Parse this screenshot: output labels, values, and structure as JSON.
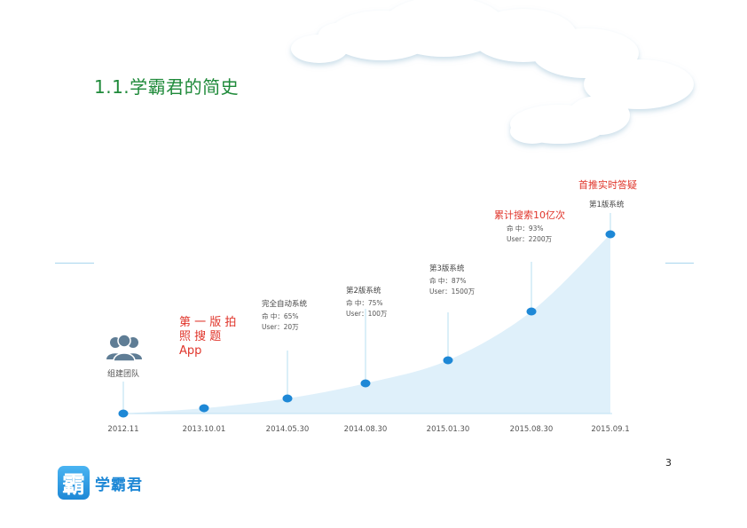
{
  "title": "1.1.学霸君的简史",
  "page_number": "3",
  "logo": {
    "icon_char": "霸",
    "text": "学霸君"
  },
  "colors": {
    "title": "#1f8a3a",
    "accent": "#1e88d6",
    "highlight": "#e0352b",
    "area": "#dff0fa"
  },
  "chart_data": {
    "type": "area",
    "x": [
      "2012.11",
      "2013.10.01",
      "2014.05.30",
      "2014.08.30",
      "2015.01.30",
      "2015.08.30",
      "2015.09.1"
    ],
    "milestones": [
      {
        "date": "2012.11",
        "icon": "team-icon",
        "label": "组建团队",
        "lines": [],
        "highlight": ""
      },
      {
        "date": "2013.10.01",
        "label": "",
        "lines": [],
        "highlight": [
          "第 一 版 拍",
          "照 搜 题",
          "App"
        ]
      },
      {
        "date": "2014.05.30",
        "label": "完全自动系统",
        "lines": [
          "命 中：65%",
          "User：20万"
        ],
        "highlight": ""
      },
      {
        "date": "2014.08.30",
        "label": "第2版系统",
        "lines": [
          "命 中：75%",
          "User：100万"
        ],
        "highlight": ""
      },
      {
        "date": "2015.01.30",
        "label": "第3版系统",
        "lines": [
          "命 中：87%",
          "User：1500万"
        ],
        "highlight": ""
      },
      {
        "date": "2015.08.30",
        "label": "",
        "lines": [
          "命 中：93%",
          "User：2200万"
        ],
        "highlight": [
          "累计搜索10亿次"
        ]
      },
      {
        "date": "2015.09.1",
        "label": "第1版系统",
        "lines": [],
        "highlight": [
          "首推实时答疑"
        ]
      }
    ]
  }
}
